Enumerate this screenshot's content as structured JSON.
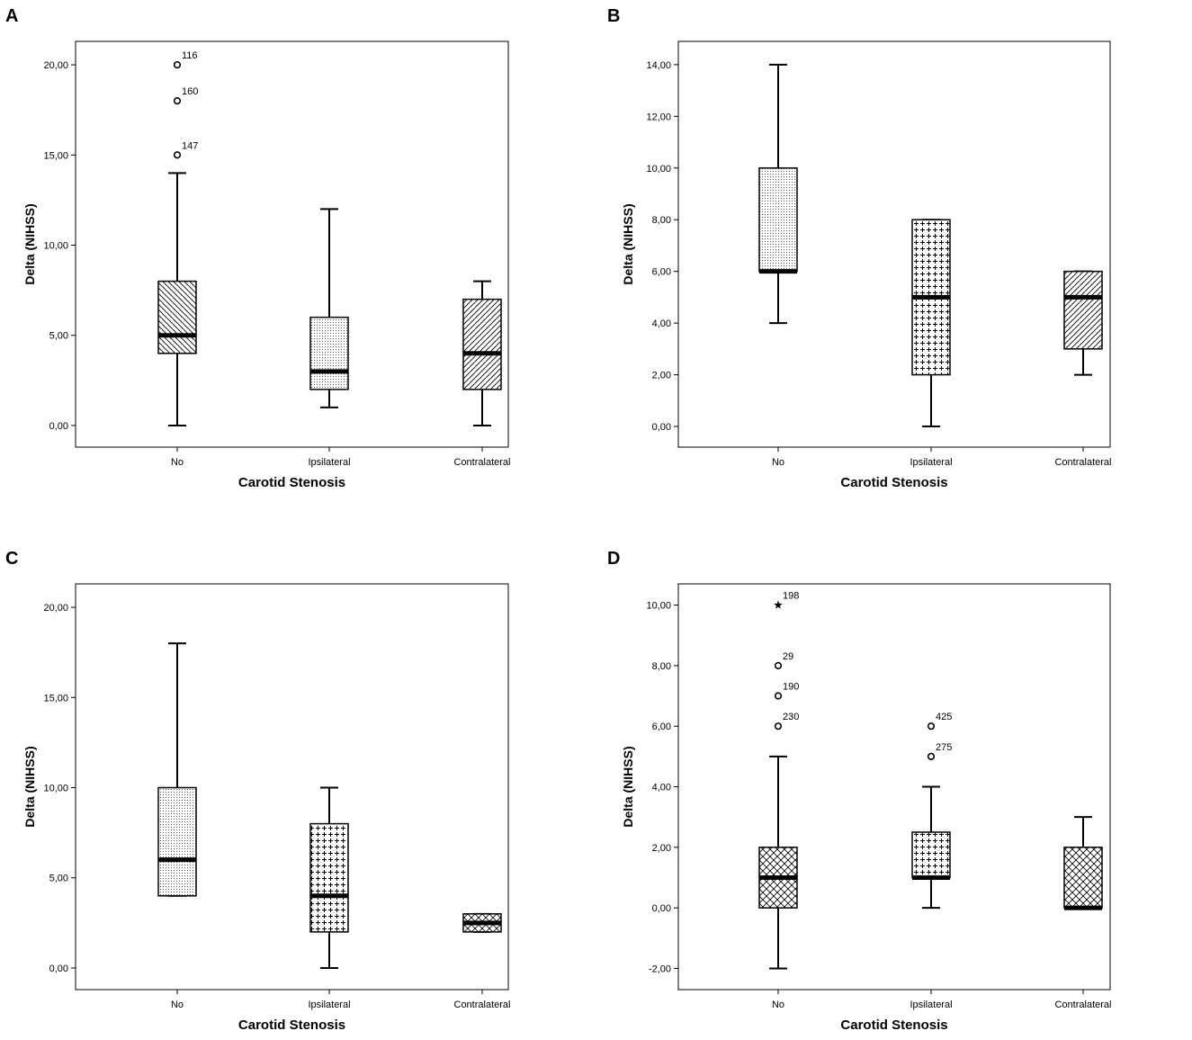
{
  "chart_data": [
    {
      "panel": "A",
      "type": "boxplot",
      "xlabel": "Carotid Stenosis",
      "ylabel": "Delta (NIHSS)",
      "ylim": [
        -1.2,
        21.3
      ],
      "yticks": [
        0,
        5,
        10,
        15,
        20
      ],
      "yticklabels": [
        "0,00",
        "5,00",
        "10,00",
        "15,00",
        "20,00"
      ],
      "groups": [
        {
          "category": "No",
          "min": 0,
          "q1": 4,
          "median": 5,
          "q3": 8,
          "max": 14,
          "pattern": "diag-left",
          "outliers": [
            {
              "value": 15,
              "label": "147",
              "marker": "circle"
            },
            {
              "value": 18,
              "label": "160",
              "marker": "circle"
            },
            {
              "value": 20,
              "label": "116",
              "marker": "circle"
            }
          ]
        },
        {
          "category": "Ipsilateral",
          "min": 1,
          "q1": 2,
          "median": 3,
          "q3": 6,
          "max": 12,
          "pattern": "dots",
          "outliers": []
        },
        {
          "category": "Contralateral",
          "min": 0,
          "q1": 2,
          "median": 4,
          "q3": 7,
          "max": 8,
          "pattern": "diag-right",
          "outliers": []
        }
      ]
    },
    {
      "panel": "B",
      "type": "boxplot",
      "xlabel": "Carotid Stenosis",
      "ylabel": "Delta (NIHSS)",
      "ylim": [
        -0.8,
        14.9
      ],
      "yticks": [
        0,
        2,
        4,
        6,
        8,
        10,
        12,
        14
      ],
      "yticklabels": [
        "0,00",
        "2,00",
        "4,00",
        "6,00",
        "8,00",
        "10,00",
        "12,00",
        "14,00"
      ],
      "groups": [
        {
          "category": "No",
          "min": 4,
          "q1": 6,
          "median": 6,
          "q3": 10,
          "max": 14,
          "pattern": "dots",
          "outliers": []
        },
        {
          "category": "Ipsilateral",
          "min": 0,
          "q1": 2,
          "median": 5,
          "q3": 8,
          "max": 8,
          "pattern": "plus",
          "outliers": []
        },
        {
          "category": "Contralateral",
          "min": 2,
          "q1": 3,
          "median": 5,
          "q3": 6,
          "max": 6,
          "pattern": "diag-right",
          "outliers": []
        }
      ]
    },
    {
      "panel": "C",
      "type": "boxplot",
      "xlabel": "Carotid Stenosis",
      "ylabel": "Delta (NIHSS)",
      "ylim": [
        -1.2,
        21.3
      ],
      "yticks": [
        0,
        5,
        10,
        15,
        20
      ],
      "yticklabels": [
        "0,00",
        "5,00",
        "10,00",
        "15,00",
        "20,00"
      ],
      "groups": [
        {
          "category": "No",
          "min": 4,
          "q1": 4,
          "median": 6,
          "q3": 10,
          "max": 18,
          "pattern": "dots",
          "outliers": []
        },
        {
          "category": "Ipsilateral",
          "min": 0,
          "q1": 2,
          "median": 4,
          "q3": 8,
          "max": 10,
          "pattern": "plus",
          "outliers": []
        },
        {
          "category": "Contralateral",
          "min": 2,
          "q1": 2,
          "median": 2.5,
          "q3": 3,
          "max": 3,
          "pattern": "crosshatch",
          "outliers": []
        }
      ]
    },
    {
      "panel": "D",
      "type": "boxplot",
      "xlabel": "Carotid Stenosis",
      "ylabel": "Delta (NIHSS)",
      "ylim": [
        -2.7,
        10.7
      ],
      "yticks": [
        -2,
        0,
        2,
        4,
        6,
        8,
        10
      ],
      "yticklabels": [
        "-2,00",
        "0,00",
        "2,00",
        "4,00",
        "6,00",
        "8,00",
        "10,00"
      ],
      "groups": [
        {
          "category": "No",
          "min": -2,
          "q1": 0,
          "median": 1,
          "q3": 2,
          "max": 5,
          "pattern": "crosshatch",
          "outliers": [
            {
              "value": 6,
              "label": "230",
              "marker": "circle"
            },
            {
              "value": 7,
              "label": "190",
              "marker": "circle"
            },
            {
              "value": 8,
              "label": "29",
              "marker": "circle"
            },
            {
              "value": 10,
              "label": "198",
              "marker": "star"
            }
          ]
        },
        {
          "category": "Ipsilateral",
          "min": 0,
          "q1": 1,
          "median": 1,
          "q3": 2.5,
          "max": 4,
          "pattern": "plus",
          "outliers": [
            {
              "value": 5,
              "label": "275",
              "marker": "circle"
            },
            {
              "value": 6,
              "label": "425",
              "marker": "circle"
            }
          ]
        },
        {
          "category": "Contralateral",
          "min": 0,
          "q1": 0,
          "median": 0,
          "q3": 2,
          "max": 3,
          "pattern": "crosshatch",
          "outliers": []
        }
      ]
    }
  ]
}
